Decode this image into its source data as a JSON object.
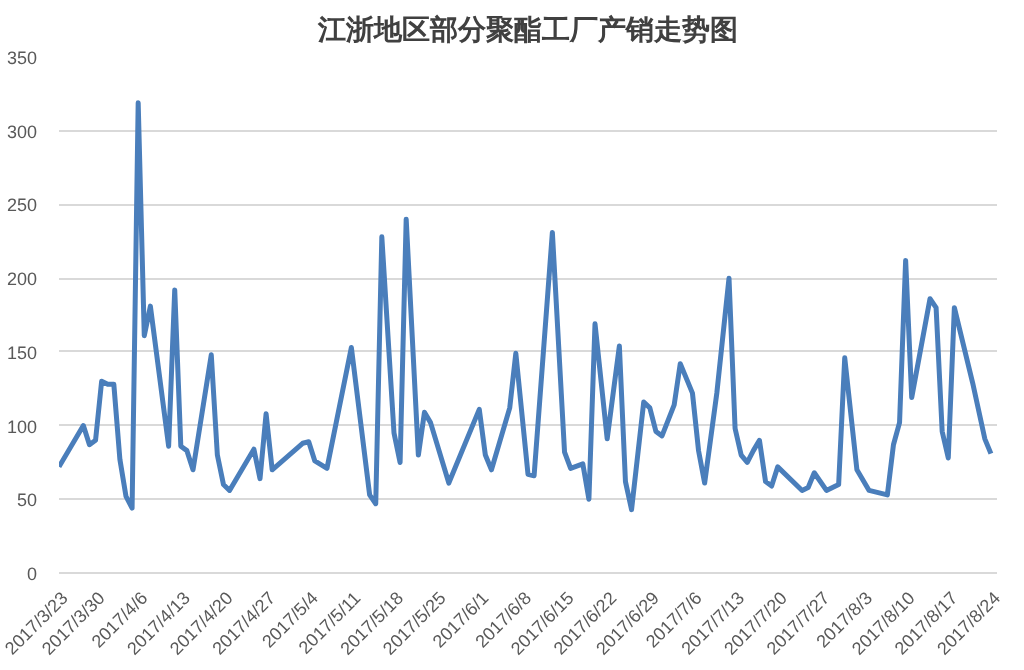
{
  "chart_data": {
    "type": "line",
    "title": "江浙地区部分聚酯工厂产销走势图",
    "x": [
      "2017-03-23",
      "2017-03-27",
      "2017-03-28",
      "2017-03-29",
      "2017-03-30",
      "2017-03-31",
      "2017-04-01",
      "2017-04-02",
      "2017-04-03",
      "2017-04-04",
      "2017-04-05",
      "2017-04-06",
      "2017-04-07",
      "2017-04-10",
      "2017-04-11",
      "2017-04-12",
      "2017-04-13",
      "2017-04-14",
      "2017-04-17",
      "2017-04-18",
      "2017-04-19",
      "2017-04-20",
      "2017-04-24",
      "2017-04-25",
      "2017-04-26",
      "2017-04-27",
      "2017-05-02",
      "2017-05-03",
      "2017-05-04",
      "2017-05-06",
      "2017-05-10",
      "2017-05-13",
      "2017-05-14",
      "2017-05-15",
      "2017-05-17",
      "2017-05-18",
      "2017-05-19",
      "2017-05-21",
      "2017-05-22",
      "2017-05-23",
      "2017-05-26",
      "2017-05-31",
      "2017-06-01",
      "2017-06-02",
      "2017-06-05",
      "2017-06-06",
      "2017-06-08",
      "2017-06-09",
      "2017-06-12",
      "2017-06-14",
      "2017-06-15",
      "2017-06-17",
      "2017-06-18",
      "2017-06-19",
      "2017-06-21",
      "2017-06-23",
      "2017-06-24",
      "2017-06-25",
      "2017-06-27",
      "2017-06-28",
      "2017-06-29",
      "2017-06-30",
      "2017-07-02",
      "2017-07-03",
      "2017-07-05",
      "2017-07-06",
      "2017-07-07",
      "2017-07-09",
      "2017-07-11",
      "2017-07-12",
      "2017-07-13",
      "2017-07-14",
      "2017-07-15",
      "2017-07-16",
      "2017-07-17",
      "2017-07-18",
      "2017-07-19",
      "2017-07-23",
      "2017-07-24",
      "2017-07-25",
      "2017-07-27",
      "2017-07-29",
      "2017-07-30",
      "2017-08-01",
      "2017-08-03",
      "2017-08-06",
      "2017-08-07",
      "2017-08-08",
      "2017-08-09",
      "2017-08-10",
      "2017-08-13",
      "2017-08-14",
      "2017-08-15",
      "2017-08-16",
      "2017-08-17",
      "2017-08-20",
      "2017-08-22",
      "2017-08-23"
    ],
    "series": [
      {
        "color": "#4a7ebb",
        "values": [
          72,
          100,
          87,
          90,
          130,
          128,
          128,
          77,
          52,
          44,
          319,
          161,
          181,
          86,
          192,
          86,
          83,
          70,
          148,
          80,
          60,
          56,
          84,
          64,
          108,
          70,
          88,
          89,
          76,
          71,
          153,
          53,
          47,
          228,
          95,
          75,
          240,
          80,
          109,
          102,
          61,
          111,
          80,
          70,
          112,
          149,
          67,
          66,
          231,
          82,
          71,
          74,
          50,
          169,
          91,
          154,
          62,
          43,
          116,
          112,
          96,
          93,
          114,
          142,
          122,
          83,
          61,
          122,
          200,
          98,
          80,
          75,
          83,
          90,
          62,
          59,
          72,
          56,
          58,
          68,
          56,
          60,
          146,
          70,
          56,
          53,
          87,
          102,
          212,
          119,
          186,
          180,
          96,
          78,
          180,
          129,
          91,
          81
        ]
      }
    ],
    "xlim": [
      "2017-03-23",
      "2017-08-24"
    ],
    "xticks": [
      {
        "value": "2017-03-23",
        "label": "2017/3/23"
      },
      {
        "value": "2017-03-30",
        "label": "2017/3/30"
      },
      {
        "value": "2017-04-06",
        "label": "2017/4/6"
      },
      {
        "value": "2017-04-13",
        "label": "2017/4/13"
      },
      {
        "value": "2017-04-20",
        "label": "2017/4/20"
      },
      {
        "value": "2017-04-27",
        "label": "2017/4/27"
      },
      {
        "value": "2017-05-04",
        "label": "2017/5/4"
      },
      {
        "value": "2017-05-11",
        "label": "2017/5/11"
      },
      {
        "value": "2017-05-18",
        "label": "2017/5/18"
      },
      {
        "value": "2017-05-25",
        "label": "2017/5/25"
      },
      {
        "value": "2017-06-01",
        "label": "2017/6/1"
      },
      {
        "value": "2017-06-08",
        "label": "2017/6/8"
      },
      {
        "value": "2017-06-15",
        "label": "2017/6/15"
      },
      {
        "value": "2017-06-22",
        "label": "2017/6/22"
      },
      {
        "value": "2017-06-29",
        "label": "2017/6/29"
      },
      {
        "value": "2017-07-06",
        "label": "2017/7/6"
      },
      {
        "value": "2017-07-13",
        "label": "2017/7/13"
      },
      {
        "value": "2017-07-20",
        "label": "2017/7/20"
      },
      {
        "value": "2017-07-27",
        "label": "2017/7/27"
      },
      {
        "value": "2017-08-03",
        "label": "2017/8/3"
      },
      {
        "value": "2017-08-10",
        "label": "2017/8/10"
      },
      {
        "value": "2017-08-17",
        "label": "2017/8/17"
      },
      {
        "value": "2017-08-24",
        "label": "2017/8/24"
      }
    ],
    "ylim": [
      0,
      350
    ],
    "yticks": [
      0,
      50,
      100,
      150,
      200,
      250,
      300,
      350
    ],
    "grid": "y",
    "marker": "none",
    "line_style": "solid"
  }
}
